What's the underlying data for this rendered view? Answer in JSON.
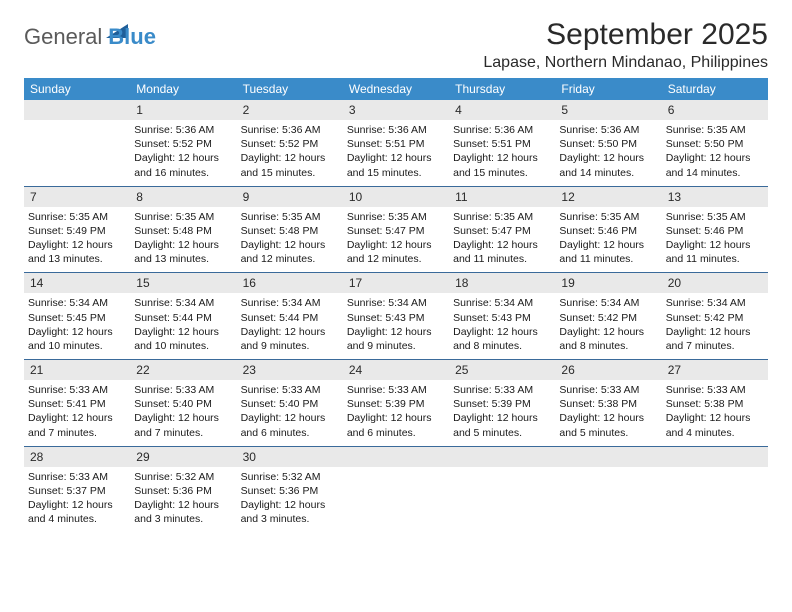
{
  "logo": {
    "text1": "General",
    "text2": "Blue",
    "color1": "#5a5a5a",
    "color2": "#3a8bc9",
    "shape_color": "#1f5f9a"
  },
  "title": "September 2025",
  "location": "Lapase, Northern Mindanao, Philippines",
  "colors": {
    "header_bg": "#3a8bc9",
    "daynum_bg": "#e9e9e9",
    "week_border": "#3a6a9a"
  },
  "dow": [
    "Sunday",
    "Monday",
    "Tuesday",
    "Wednesday",
    "Thursday",
    "Friday",
    "Saturday"
  ],
  "weeks": [
    [
      {
        "n": "",
        "sr": "",
        "ss": "",
        "dl": ""
      },
      {
        "n": "1",
        "sr": "Sunrise: 5:36 AM",
        "ss": "Sunset: 5:52 PM",
        "dl": "Daylight: 12 hours and 16 minutes."
      },
      {
        "n": "2",
        "sr": "Sunrise: 5:36 AM",
        "ss": "Sunset: 5:52 PM",
        "dl": "Daylight: 12 hours and 15 minutes."
      },
      {
        "n": "3",
        "sr": "Sunrise: 5:36 AM",
        "ss": "Sunset: 5:51 PM",
        "dl": "Daylight: 12 hours and 15 minutes."
      },
      {
        "n": "4",
        "sr": "Sunrise: 5:36 AM",
        "ss": "Sunset: 5:51 PM",
        "dl": "Daylight: 12 hours and 15 minutes."
      },
      {
        "n": "5",
        "sr": "Sunrise: 5:36 AM",
        "ss": "Sunset: 5:50 PM",
        "dl": "Daylight: 12 hours and 14 minutes."
      },
      {
        "n": "6",
        "sr": "Sunrise: 5:35 AM",
        "ss": "Sunset: 5:50 PM",
        "dl": "Daylight: 12 hours and 14 minutes."
      }
    ],
    [
      {
        "n": "7",
        "sr": "Sunrise: 5:35 AM",
        "ss": "Sunset: 5:49 PM",
        "dl": "Daylight: 12 hours and 13 minutes."
      },
      {
        "n": "8",
        "sr": "Sunrise: 5:35 AM",
        "ss": "Sunset: 5:48 PM",
        "dl": "Daylight: 12 hours and 13 minutes."
      },
      {
        "n": "9",
        "sr": "Sunrise: 5:35 AM",
        "ss": "Sunset: 5:48 PM",
        "dl": "Daylight: 12 hours and 12 minutes."
      },
      {
        "n": "10",
        "sr": "Sunrise: 5:35 AM",
        "ss": "Sunset: 5:47 PM",
        "dl": "Daylight: 12 hours and 12 minutes."
      },
      {
        "n": "11",
        "sr": "Sunrise: 5:35 AM",
        "ss": "Sunset: 5:47 PM",
        "dl": "Daylight: 12 hours and 11 minutes."
      },
      {
        "n": "12",
        "sr": "Sunrise: 5:35 AM",
        "ss": "Sunset: 5:46 PM",
        "dl": "Daylight: 12 hours and 11 minutes."
      },
      {
        "n": "13",
        "sr": "Sunrise: 5:35 AM",
        "ss": "Sunset: 5:46 PM",
        "dl": "Daylight: 12 hours and 11 minutes."
      }
    ],
    [
      {
        "n": "14",
        "sr": "Sunrise: 5:34 AM",
        "ss": "Sunset: 5:45 PM",
        "dl": "Daylight: 12 hours and 10 minutes."
      },
      {
        "n": "15",
        "sr": "Sunrise: 5:34 AM",
        "ss": "Sunset: 5:44 PM",
        "dl": "Daylight: 12 hours and 10 minutes."
      },
      {
        "n": "16",
        "sr": "Sunrise: 5:34 AM",
        "ss": "Sunset: 5:44 PM",
        "dl": "Daylight: 12 hours and 9 minutes."
      },
      {
        "n": "17",
        "sr": "Sunrise: 5:34 AM",
        "ss": "Sunset: 5:43 PM",
        "dl": "Daylight: 12 hours and 9 minutes."
      },
      {
        "n": "18",
        "sr": "Sunrise: 5:34 AM",
        "ss": "Sunset: 5:43 PM",
        "dl": "Daylight: 12 hours and 8 minutes."
      },
      {
        "n": "19",
        "sr": "Sunrise: 5:34 AM",
        "ss": "Sunset: 5:42 PM",
        "dl": "Daylight: 12 hours and 8 minutes."
      },
      {
        "n": "20",
        "sr": "Sunrise: 5:34 AM",
        "ss": "Sunset: 5:42 PM",
        "dl": "Daylight: 12 hours and 7 minutes."
      }
    ],
    [
      {
        "n": "21",
        "sr": "Sunrise: 5:33 AM",
        "ss": "Sunset: 5:41 PM",
        "dl": "Daylight: 12 hours and 7 minutes."
      },
      {
        "n": "22",
        "sr": "Sunrise: 5:33 AM",
        "ss": "Sunset: 5:40 PM",
        "dl": "Daylight: 12 hours and 7 minutes."
      },
      {
        "n": "23",
        "sr": "Sunrise: 5:33 AM",
        "ss": "Sunset: 5:40 PM",
        "dl": "Daylight: 12 hours and 6 minutes."
      },
      {
        "n": "24",
        "sr": "Sunrise: 5:33 AM",
        "ss": "Sunset: 5:39 PM",
        "dl": "Daylight: 12 hours and 6 minutes."
      },
      {
        "n": "25",
        "sr": "Sunrise: 5:33 AM",
        "ss": "Sunset: 5:39 PM",
        "dl": "Daylight: 12 hours and 5 minutes."
      },
      {
        "n": "26",
        "sr": "Sunrise: 5:33 AM",
        "ss": "Sunset: 5:38 PM",
        "dl": "Daylight: 12 hours and 5 minutes."
      },
      {
        "n": "27",
        "sr": "Sunrise: 5:33 AM",
        "ss": "Sunset: 5:38 PM",
        "dl": "Daylight: 12 hours and 4 minutes."
      }
    ],
    [
      {
        "n": "28",
        "sr": "Sunrise: 5:33 AM",
        "ss": "Sunset: 5:37 PM",
        "dl": "Daylight: 12 hours and 4 minutes."
      },
      {
        "n": "29",
        "sr": "Sunrise: 5:32 AM",
        "ss": "Sunset: 5:36 PM",
        "dl": "Daylight: 12 hours and 3 minutes."
      },
      {
        "n": "30",
        "sr": "Sunrise: 5:32 AM",
        "ss": "Sunset: 5:36 PM",
        "dl": "Daylight: 12 hours and 3 minutes."
      },
      {
        "n": "",
        "sr": "",
        "ss": "",
        "dl": ""
      },
      {
        "n": "",
        "sr": "",
        "ss": "",
        "dl": ""
      },
      {
        "n": "",
        "sr": "",
        "ss": "",
        "dl": ""
      },
      {
        "n": "",
        "sr": "",
        "ss": "",
        "dl": ""
      }
    ]
  ]
}
